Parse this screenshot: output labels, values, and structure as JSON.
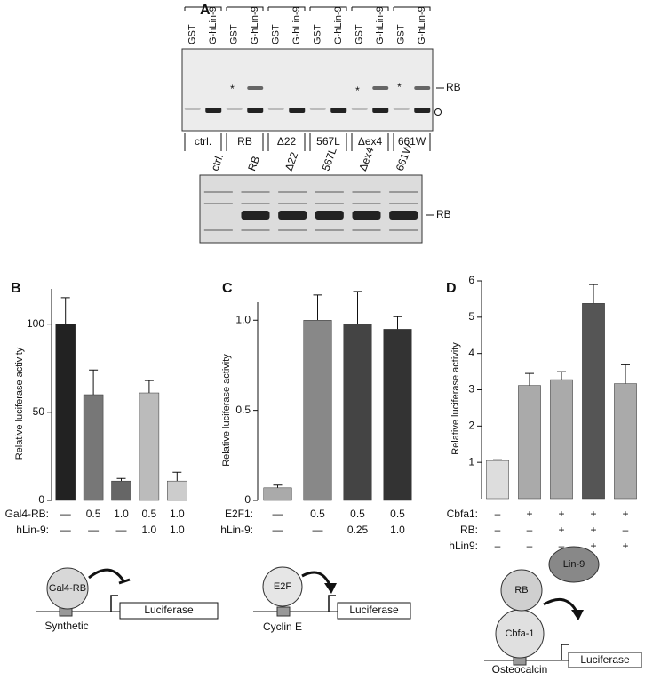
{
  "panel_a": {
    "label": "A",
    "lanes": [
      "GST",
      "G-hLin-9",
      "GST",
      "G-hLin-9",
      "GST",
      "G-hLin-9",
      "GST",
      "G-hLin-9",
      "GST",
      "G-hLin-9",
      "GST",
      "G-hLin-9"
    ],
    "constructs": [
      "ctrl.",
      "RB",
      "Δ22",
      "567L",
      "Δex4",
      "661W"
    ],
    "asterisks": [
      "*",
      "*",
      "*"
    ],
    "rb_label": "RB",
    "lower_blot": {
      "lanes": [
        "ctrl.",
        "RB",
        "Δ22",
        "567L",
        "Δex4",
        "661W"
      ],
      "rb_label": "RB"
    }
  },
  "chart_data": [
    {
      "type": "bar",
      "label": "B",
      "ylabel": "Relative luciferase activity",
      "values": [
        100,
        60,
        11,
        61,
        11
      ],
      "errors": [
        15,
        14,
        1.5,
        7,
        5
      ],
      "colors": [
        "#222222",
        "#777777",
        "#666666",
        "#bbbbbb",
        "#cccccc"
      ],
      "ylim": [
        0,
        120
      ],
      "yticks": [
        0,
        50,
        100
      ],
      "conditions": [
        {
          "label": "Gal4-RB:",
          "values": [
            "—",
            "0.5",
            "1.0",
            "0.5",
            "1.0"
          ]
        },
        {
          "label": "hLin-9:",
          "values": [
            "—",
            "—",
            "—",
            "1.0",
            "1.0"
          ]
        }
      ]
    },
    {
      "type": "bar",
      "label": "C",
      "ylabel": "Relative luciferase activity",
      "values": [
        0.07,
        1.0,
        0.98,
        0.95
      ],
      "errors": [
        0.015,
        0.14,
        0.18,
        0.07
      ],
      "colors": [
        "#aaaaaa",
        "#888888",
        "#444444",
        "#333333"
      ],
      "ylim": [
        0,
        1.1
      ],
      "yticks": [
        0,
        0.5,
        {
          "value": 1,
          "label": "1.0"
        }
      ],
      "conditions": [
        {
          "label": "E2F1:",
          "values": [
            "—",
            "0.5",
            "0.5",
            "0.5"
          ]
        },
        {
          "label": "hLin-9:",
          "values": [
            "—",
            "—",
            "0.25",
            "1.0"
          ]
        }
      ]
    },
    {
      "type": "bar",
      "label": "D",
      "ylabel": "Relative luciferase activity",
      "values": [
        1.05,
        3.12,
        3.28,
        5.38,
        3.17
      ],
      "errors": [
        0.02,
        0.33,
        0.22,
        0.52,
        0.52
      ],
      "colors": [
        "#dddddd",
        "#aaaaaa",
        "#aaaaaa",
        "#555555",
        "#aaaaaa"
      ],
      "ylim": [
        0,
        6
      ],
      "yticks": [
        1,
        2,
        3,
        4,
        5,
        6
      ],
      "conditions": [
        {
          "label": "Cbfa1:",
          "values": [
            "–",
            "+",
            "+",
            "+",
            "+"
          ]
        },
        {
          "label": "RB:",
          "values": [
            "–",
            "–",
            "+",
            "+",
            "–"
          ]
        },
        {
          "label": "hLin9:",
          "values": [
            "–",
            "–",
            "–",
            "+",
            "+"
          ]
        }
      ]
    }
  ],
  "diagrams": [
    {
      "factors": [
        "Gal4-RB"
      ],
      "reporter": "Luciferase",
      "promoter": "Synthetic"
    },
    {
      "factors": [
        "E2F"
      ],
      "reporter": "Luciferase",
      "promoter": "Cyclin E"
    },
    {
      "factors": [
        "RB",
        "Lin-9",
        "Cbfa-1"
      ],
      "reporter": "Luciferase",
      "promoter": "Osteocalcin"
    }
  ]
}
